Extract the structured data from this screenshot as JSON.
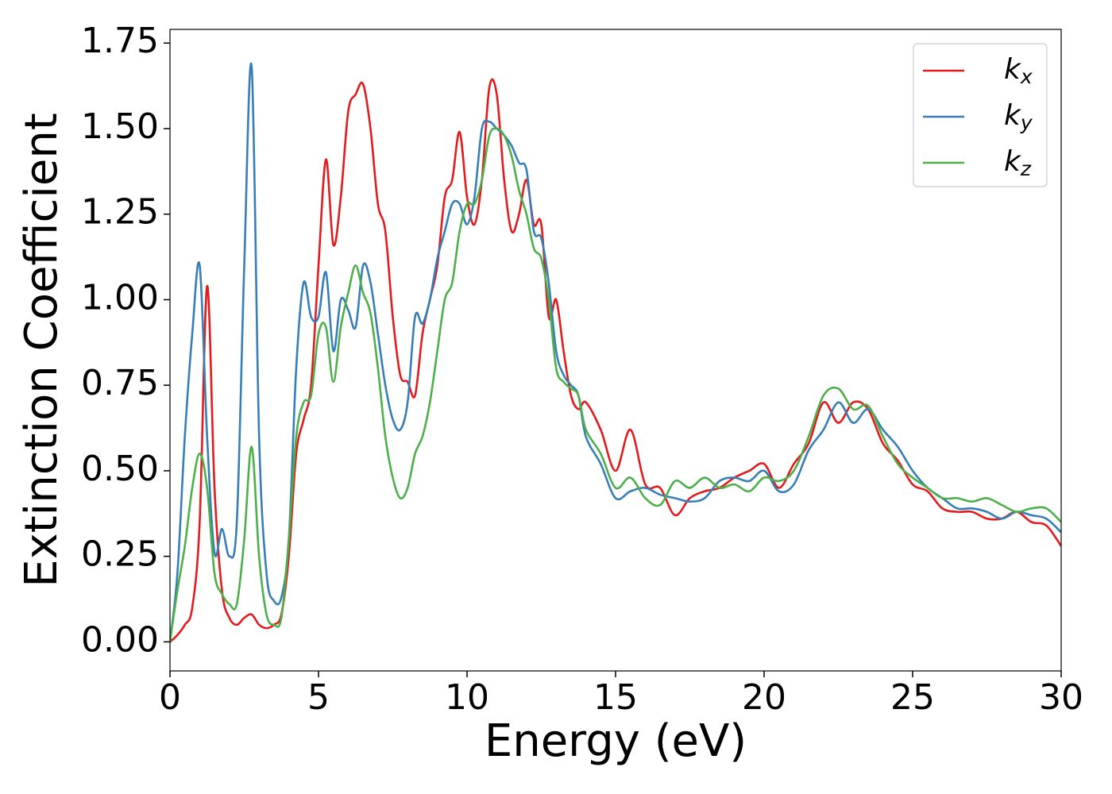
{
  "chart_data": {
    "type": "line",
    "xlabel": "Energy (eV)",
    "ylabel": "Extinction Coefficient",
    "x": [
      0,
      0.25,
      0.5,
      0.75,
      1,
      1.25,
      1.5,
      1.75,
      2,
      2.25,
      2.5,
      2.75,
      3,
      3.25,
      3.5,
      3.75,
      4,
      4.25,
      4.5,
      4.75,
      5,
      5.25,
      5.5,
      5.75,
      6,
      6.25,
      6.5,
      6.75,
      7,
      7.25,
      7.5,
      7.75,
      8,
      8.25,
      8.5,
      8.75,
      9,
      9.25,
      9.5,
      9.75,
      10,
      10.25,
      10.5,
      10.75,
      11,
      11.25,
      11.5,
      11.75,
      12,
      12.25,
      12.5,
      12.75,
      13,
      13.25,
      13.5,
      13.75,
      14,
      14.5,
      15,
      15.5,
      16,
      16.5,
      17,
      17.5,
      18,
      18.5,
      19,
      19.5,
      20,
      20.5,
      21,
      21.5,
      22,
      22.5,
      23,
      23.5,
      24,
      24.5,
      25,
      25.5,
      26,
      26.5,
      27,
      27.5,
      28,
      28.5,
      29,
      29.5,
      30
    ],
    "series": [
      {
        "name": "kx",
        "color": "#e41a1c",
        "values": [
          0,
          0.02,
          0.05,
          0.1,
          0.35,
          1.04,
          0.45,
          0.15,
          0.07,
          0.05,
          0.07,
          0.08,
          0.05,
          0.04,
          0.05,
          0.08,
          0.25,
          0.55,
          0.65,
          0.75,
          1.1,
          1.41,
          1.16,
          1.3,
          1.55,
          1.6,
          1.63,
          1.5,
          1.28,
          1.2,
          0.95,
          0.78,
          0.76,
          0.72,
          0.9,
          1.0,
          1.1,
          1.3,
          1.35,
          1.49,
          1.3,
          1.22,
          1.35,
          1.62,
          1.6,
          1.35,
          1.2,
          1.25,
          1.35,
          1.22,
          1.22,
          0.95,
          1.0,
          0.85,
          0.72,
          0.68,
          0.7,
          0.62,
          0.5,
          0.62,
          0.46,
          0.45,
          0.37,
          0.42,
          0.44,
          0.45,
          0.48,
          0.5,
          0.52,
          0.45,
          0.52,
          0.58,
          0.7,
          0.64,
          0.7,
          0.68,
          0.58,
          0.53,
          0.46,
          0.44,
          0.39,
          0.38,
          0.38,
          0.36,
          0.36,
          0.38,
          0.35,
          0.34,
          0.28
        ]
      },
      {
        "name": "ky",
        "color": "#377eb8",
        "values": [
          0,
          0.2,
          0.6,
          0.9,
          1.1,
          0.6,
          0.26,
          0.33,
          0.25,
          0.35,
          1.1,
          1.68,
          0.6,
          0.2,
          0.12,
          0.13,
          0.3,
          0.8,
          1.05,
          0.95,
          0.95,
          1.08,
          0.85,
          1.0,
          0.97,
          0.92,
          1.1,
          1.05,
          0.9,
          0.75,
          0.65,
          0.62,
          0.7,
          0.95,
          0.93,
          1.0,
          1.12,
          1.2,
          1.28,
          1.28,
          1.22,
          1.3,
          1.5,
          1.52,
          1.5,
          1.48,
          1.45,
          1.4,
          1.38,
          1.2,
          1.18,
          1.05,
          0.85,
          0.78,
          0.75,
          0.72,
          0.6,
          0.52,
          0.42,
          0.44,
          0.45,
          0.43,
          0.42,
          0.41,
          0.42,
          0.47,
          0.48,
          0.47,
          0.5,
          0.44,
          0.46,
          0.56,
          0.62,
          0.7,
          0.64,
          0.68,
          0.62,
          0.57,
          0.5,
          0.45,
          0.42,
          0.39,
          0.39,
          0.38,
          0.36,
          0.38,
          0.37,
          0.36,
          0.32
        ]
      },
      {
        "name": "kz",
        "color": "#4daf4a",
        "values": [
          0,
          0.15,
          0.28,
          0.45,
          0.55,
          0.45,
          0.2,
          0.14,
          0.11,
          0.11,
          0.3,
          0.57,
          0.25,
          0.08,
          0.05,
          0.07,
          0.3,
          0.6,
          0.7,
          0.72,
          0.9,
          0.92,
          0.76,
          0.92,
          1.02,
          1.1,
          1.02,
          0.96,
          0.8,
          0.6,
          0.48,
          0.42,
          0.45,
          0.55,
          0.6,
          0.7,
          0.85,
          1.0,
          1.05,
          1.2,
          1.28,
          1.28,
          1.35,
          1.48,
          1.5,
          1.48,
          1.42,
          1.32,
          1.25,
          1.15,
          1.12,
          1.0,
          0.8,
          0.76,
          0.74,
          0.72,
          0.62,
          0.55,
          0.45,
          0.48,
          0.42,
          0.4,
          0.47,
          0.45,
          0.48,
          0.45,
          0.46,
          0.44,
          0.48,
          0.47,
          0.5,
          0.6,
          0.72,
          0.74,
          0.68,
          0.69,
          0.6,
          0.52,
          0.48,
          0.45,
          0.42,
          0.42,
          0.41,
          0.42,
          0.4,
          0.38,
          0.39,
          0.39,
          0.35
        ]
      }
    ],
    "xlim": [
      0,
      30
    ],
    "xticks": [
      0,
      5,
      10,
      15,
      20,
      25,
      30
    ],
    "ylim": [
      -0.085,
      1.79
    ],
    "yticks": [
      {
        "value": 0,
        "label": "0.00"
      },
      0.25,
      {
        "value": 0.5,
        "label": "0.50"
      },
      0.75,
      {
        "value": 1,
        "label": "1.00"
      },
      1.25,
      {
        "value": 1.5,
        "label": "1.50"
      },
      1.75
    ],
    "grid": false,
    "legend": "upper right"
  }
}
